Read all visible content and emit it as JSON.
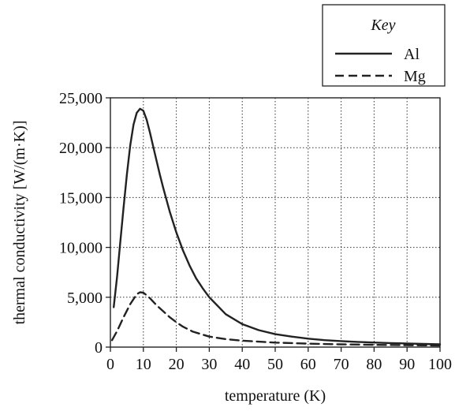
{
  "chart_data": {
    "type": "line",
    "title": "",
    "xlabel": "temperature (K)",
    "ylabel": "thermal conductivity [W/(m·K)]",
    "xlim": [
      0,
      100
    ],
    "ylim": [
      0,
      25000
    ],
    "x_ticks": [
      0,
      10,
      20,
      30,
      40,
      50,
      60,
      70,
      80,
      90,
      100
    ],
    "y_ticks": [
      0,
      5000,
      10000,
      15000,
      20000,
      25000
    ],
    "x_tick_labels": [
      "0",
      "10",
      "20",
      "30",
      "40",
      "50",
      "60",
      "70",
      "80",
      "90",
      "100"
    ],
    "y_tick_labels": [
      "0",
      "5,000",
      "10,000",
      "15,000",
      "20,000",
      "25,000"
    ],
    "grid": true,
    "legend": {
      "title": "Key",
      "placement": "top-right, above plot"
    },
    "series": [
      {
        "name": "Al",
        "style": "solid",
        "color": "#222222",
        "x": [
          1,
          2,
          3,
          4,
          5,
          6,
          7,
          8,
          9,
          10,
          11,
          12,
          13,
          14,
          15,
          16,
          18,
          20,
          22,
          24,
          26,
          28,
          30,
          35,
          40,
          45,
          50,
          55,
          60,
          65,
          70,
          75,
          80,
          85,
          90,
          95,
          100
        ],
        "y": [
          4000,
          7000,
          10500,
          14000,
          17300,
          20200,
          22300,
          23500,
          23900,
          23700,
          22800,
          21500,
          20100,
          18700,
          17300,
          16000,
          13600,
          11500,
          9700,
          8200,
          6900,
          5900,
          5000,
          3300,
          2300,
          1700,
          1300,
          1050,
          850,
          700,
          600,
          520,
          460,
          400,
          360,
          320,
          280
        ]
      },
      {
        "name": "Mg",
        "style": "dashed",
        "color": "#222222",
        "x": [
          0.5,
          2,
          4,
          6,
          8,
          9,
          10,
          11,
          12,
          14,
          16,
          18,
          20,
          22,
          25,
          30,
          35,
          40,
          50,
          60,
          70,
          80,
          90,
          100
        ],
        "y": [
          700,
          1600,
          3000,
          4300,
          5300,
          5500,
          5450,
          5200,
          4900,
          4200,
          3600,
          3000,
          2500,
          2050,
          1550,
          1050,
          800,
          650,
          450,
          350,
          280,
          230,
          190,
          160
        ]
      }
    ]
  }
}
